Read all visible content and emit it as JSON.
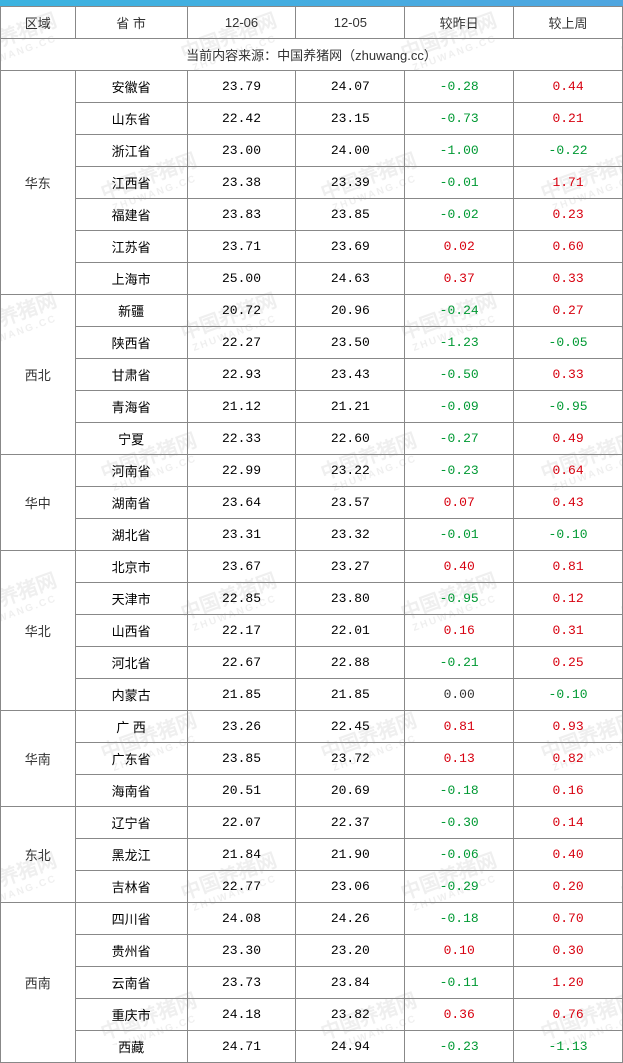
{
  "header": {
    "cols": [
      "区域",
      "省 市",
      "12-06",
      "12-05",
      "较昨日",
      "较上周"
    ]
  },
  "source_line": "当前内容来源：中国养猪网（zhuwang.cc）",
  "colors": {
    "positive": "#d7000f",
    "negative": "#009933",
    "neutral": "#333333",
    "border": "#888888",
    "watermark": "rgba(120,120,120,0.12)",
    "topbar": "#3bb3e0"
  },
  "watermark": {
    "text_main": "中国养猪网",
    "text_sub": "ZHUWANG.CC"
  },
  "col_widths_pct": [
    12,
    18,
    17.5,
    17.5,
    17.5,
    17.5
  ],
  "regions": [
    {
      "name": "华东",
      "rows": [
        {
          "prov": "安徽省",
          "d1": "23.79",
          "d2": "24.07",
          "dy": "-0.28",
          "dw": "0.44"
        },
        {
          "prov": "山东省",
          "d1": "22.42",
          "d2": "23.15",
          "dy": "-0.73",
          "dw": "0.21"
        },
        {
          "prov": "浙江省",
          "d1": "23.00",
          "d2": "24.00",
          "dy": "-1.00",
          "dw": "-0.22"
        },
        {
          "prov": "江西省",
          "d1": "23.38",
          "d2": "23.39",
          "dy": "-0.01",
          "dw": "1.71"
        },
        {
          "prov": "福建省",
          "d1": "23.83",
          "d2": "23.85",
          "dy": "-0.02",
          "dw": "0.23"
        },
        {
          "prov": "江苏省",
          "d1": "23.71",
          "d2": "23.69",
          "dy": "0.02",
          "dw": "0.60"
        },
        {
          "prov": "上海市",
          "d1": "25.00",
          "d2": "24.63",
          "dy": "0.37",
          "dw": "0.33"
        }
      ]
    },
    {
      "name": "西北",
      "rows": [
        {
          "prov": "新疆",
          "d1": "20.72",
          "d2": "20.96",
          "dy": "-0.24",
          "dw": "0.27"
        },
        {
          "prov": "陕西省",
          "d1": "22.27",
          "d2": "23.50",
          "dy": "-1.23",
          "dw": "-0.05"
        },
        {
          "prov": "甘肃省",
          "d1": "22.93",
          "d2": "23.43",
          "dy": "-0.50",
          "dw": "0.33"
        },
        {
          "prov": "青海省",
          "d1": "21.12",
          "d2": "21.21",
          "dy": "-0.09",
          "dw": "-0.95"
        },
        {
          "prov": "宁夏",
          "d1": "22.33",
          "d2": "22.60",
          "dy": "-0.27",
          "dw": "0.49"
        }
      ]
    },
    {
      "name": "华中",
      "rows": [
        {
          "prov": "河南省",
          "d1": "22.99",
          "d2": "23.22",
          "dy": "-0.23",
          "dw": "0.64"
        },
        {
          "prov": "湖南省",
          "d1": "23.64",
          "d2": "23.57",
          "dy": "0.07",
          "dw": "0.43"
        },
        {
          "prov": "湖北省",
          "d1": "23.31",
          "d2": "23.32",
          "dy": "-0.01",
          "dw": "-0.10"
        }
      ]
    },
    {
      "name": "华北",
      "rows": [
        {
          "prov": "北京市",
          "d1": "23.67",
          "d2": "23.27",
          "dy": "0.40",
          "dw": "0.81"
        },
        {
          "prov": "天津市",
          "d1": "22.85",
          "d2": "23.80",
          "dy": "-0.95",
          "dw": "0.12"
        },
        {
          "prov": "山西省",
          "d1": "22.17",
          "d2": "22.01",
          "dy": "0.16",
          "dw": "0.31"
        },
        {
          "prov": "河北省",
          "d1": "22.67",
          "d2": "22.88",
          "dy": "-0.21",
          "dw": "0.25"
        },
        {
          "prov": "内蒙古",
          "d1": "21.85",
          "d2": "21.85",
          "dy": "0.00",
          "dw": "-0.10"
        }
      ]
    },
    {
      "name": "华南",
      "rows": [
        {
          "prov": "广 西",
          "d1": "23.26",
          "d2": "22.45",
          "dy": "0.81",
          "dw": "0.93"
        },
        {
          "prov": "广东省",
          "d1": "23.85",
          "d2": "23.72",
          "dy": "0.13",
          "dw": "0.82"
        },
        {
          "prov": "海南省",
          "d1": "20.51",
          "d2": "20.69",
          "dy": "-0.18",
          "dw": "0.16"
        }
      ]
    },
    {
      "name": "东北",
      "rows": [
        {
          "prov": "辽宁省",
          "d1": "22.07",
          "d2": "22.37",
          "dy": "-0.30",
          "dw": "0.14"
        },
        {
          "prov": "黑龙江",
          "d1": "21.84",
          "d2": "21.90",
          "dy": "-0.06",
          "dw": "0.40"
        },
        {
          "prov": "吉林省",
          "d1": "22.77",
          "d2": "23.06",
          "dy": "-0.29",
          "dw": "0.20"
        }
      ]
    },
    {
      "name": "西南",
      "rows": [
        {
          "prov": "四川省",
          "d1": "24.08",
          "d2": "24.26",
          "dy": "-0.18",
          "dw": "0.70"
        },
        {
          "prov": "贵州省",
          "d1": "23.30",
          "d2": "23.20",
          "dy": "0.10",
          "dw": "0.30"
        },
        {
          "prov": "云南省",
          "d1": "23.73",
          "d2": "23.84",
          "dy": "-0.11",
          "dw": "1.20"
        },
        {
          "prov": "重庆市",
          "d1": "24.18",
          "d2": "23.82",
          "dy": "0.36",
          "dw": "0.76"
        },
        {
          "prov": "西藏",
          "d1": "24.71",
          "d2": "24.94",
          "dy": "-0.23",
          "dw": "-1.13"
        }
      ]
    }
  ]
}
